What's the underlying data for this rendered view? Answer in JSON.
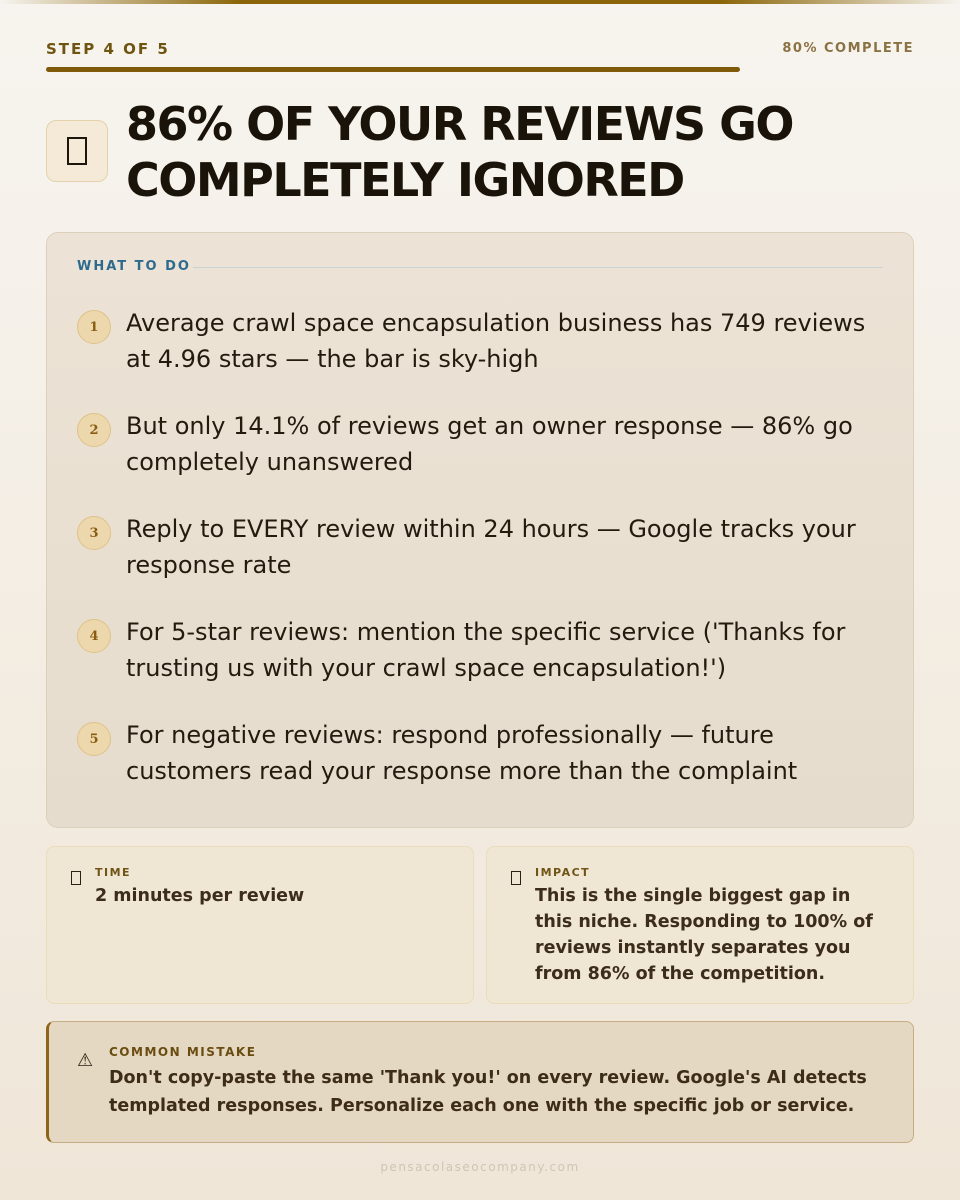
{
  "header": {
    "step_label": "STEP 4 OF 5",
    "complete_label": "80% COMPLETE",
    "progress_fraction": 0.8
  },
  "title": {
    "icon": "document-icon",
    "lines": [
      "86% OF YOUR REVIEWS GO",
      "COMPLETELY IGNORED"
    ]
  },
  "steps": {
    "heading": "WHAT TO DO",
    "items": [
      {
        "number": "1",
        "text": "Average crawl space encapsulation business has 749 reviews at 4.96 stars — the bar is sky-high"
      },
      {
        "number": "2",
        "text": "But only 14.1% of reviews get an owner response — 86% go completely unanswered"
      },
      {
        "number": "3",
        "text": "Reply to EVERY review within 24 hours — Google tracks your response rate"
      },
      {
        "number": "4",
        "text": "For 5-star reviews: mention the specific service ('Thanks for trusting us with your crawl space encapsulation!')"
      },
      {
        "number": "5",
        "text": "For negative reviews: respond professionally — future customers read your response more than the complaint"
      }
    ]
  },
  "time": {
    "icon": "clock-icon",
    "label": "TIME",
    "value": "2 minutes per review"
  },
  "impact": {
    "icon": "chart-icon",
    "label": "IMPACT",
    "value": "This is the single biggest gap in this niche. Responding to 100% of reviews instantly separates you from 86% of the competition."
  },
  "mistake": {
    "icon": "warning-icon",
    "icon_glyph": "⚠",
    "label": "COMMON MISTAKE",
    "text": "Don't copy-paste the same 'Thank you!' on every review. Google's AI detects templated responses. Personalize each one with the specific job or service."
  },
  "footer": {
    "site": "pensacolaseocompany.com"
  },
  "colors": {
    "accent": "#8b6508",
    "heading_blue": "#2d6a8e",
    "card_bg": "#e9e0d2"
  }
}
